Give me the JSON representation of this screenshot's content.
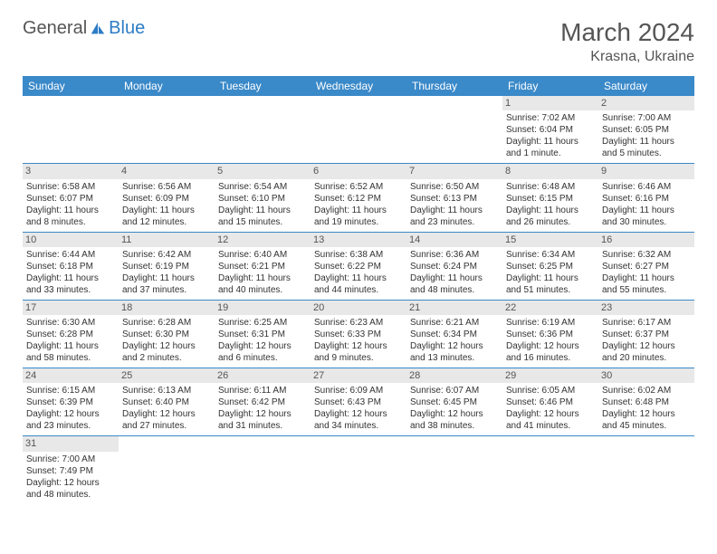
{
  "logo": {
    "part1": "General",
    "part2": "Blue"
  },
  "title": "March 2024",
  "location": "Krasna, Ukraine",
  "colors": {
    "header_bg": "#3a89c9",
    "header_text": "#ffffff",
    "daynum_bg": "#e8e8e8",
    "row_border": "#3a89c9",
    "body_text": "#333333",
    "logo_blue": "#2d7cc5",
    "logo_gray": "#555555"
  },
  "weekdays": [
    "Sunday",
    "Monday",
    "Tuesday",
    "Wednesday",
    "Thursday",
    "Friday",
    "Saturday"
  ],
  "weeks": [
    [
      null,
      null,
      null,
      null,
      null,
      {
        "d": "1",
        "sr": "Sunrise: 7:02 AM",
        "ss": "Sunset: 6:04 PM",
        "dl1": "Daylight: 11 hours",
        "dl2": "and 1 minute."
      },
      {
        "d": "2",
        "sr": "Sunrise: 7:00 AM",
        "ss": "Sunset: 6:05 PM",
        "dl1": "Daylight: 11 hours",
        "dl2": "and 5 minutes."
      }
    ],
    [
      {
        "d": "3",
        "sr": "Sunrise: 6:58 AM",
        "ss": "Sunset: 6:07 PM",
        "dl1": "Daylight: 11 hours",
        "dl2": "and 8 minutes."
      },
      {
        "d": "4",
        "sr": "Sunrise: 6:56 AM",
        "ss": "Sunset: 6:09 PM",
        "dl1": "Daylight: 11 hours",
        "dl2": "and 12 minutes."
      },
      {
        "d": "5",
        "sr": "Sunrise: 6:54 AM",
        "ss": "Sunset: 6:10 PM",
        "dl1": "Daylight: 11 hours",
        "dl2": "and 15 minutes."
      },
      {
        "d": "6",
        "sr": "Sunrise: 6:52 AM",
        "ss": "Sunset: 6:12 PM",
        "dl1": "Daylight: 11 hours",
        "dl2": "and 19 minutes."
      },
      {
        "d": "7",
        "sr": "Sunrise: 6:50 AM",
        "ss": "Sunset: 6:13 PM",
        "dl1": "Daylight: 11 hours",
        "dl2": "and 23 minutes."
      },
      {
        "d": "8",
        "sr": "Sunrise: 6:48 AM",
        "ss": "Sunset: 6:15 PM",
        "dl1": "Daylight: 11 hours",
        "dl2": "and 26 minutes."
      },
      {
        "d": "9",
        "sr": "Sunrise: 6:46 AM",
        "ss": "Sunset: 6:16 PM",
        "dl1": "Daylight: 11 hours",
        "dl2": "and 30 minutes."
      }
    ],
    [
      {
        "d": "10",
        "sr": "Sunrise: 6:44 AM",
        "ss": "Sunset: 6:18 PM",
        "dl1": "Daylight: 11 hours",
        "dl2": "and 33 minutes."
      },
      {
        "d": "11",
        "sr": "Sunrise: 6:42 AM",
        "ss": "Sunset: 6:19 PM",
        "dl1": "Daylight: 11 hours",
        "dl2": "and 37 minutes."
      },
      {
        "d": "12",
        "sr": "Sunrise: 6:40 AM",
        "ss": "Sunset: 6:21 PM",
        "dl1": "Daylight: 11 hours",
        "dl2": "and 40 minutes."
      },
      {
        "d": "13",
        "sr": "Sunrise: 6:38 AM",
        "ss": "Sunset: 6:22 PM",
        "dl1": "Daylight: 11 hours",
        "dl2": "and 44 minutes."
      },
      {
        "d": "14",
        "sr": "Sunrise: 6:36 AM",
        "ss": "Sunset: 6:24 PM",
        "dl1": "Daylight: 11 hours",
        "dl2": "and 48 minutes."
      },
      {
        "d": "15",
        "sr": "Sunrise: 6:34 AM",
        "ss": "Sunset: 6:25 PM",
        "dl1": "Daylight: 11 hours",
        "dl2": "and 51 minutes."
      },
      {
        "d": "16",
        "sr": "Sunrise: 6:32 AM",
        "ss": "Sunset: 6:27 PM",
        "dl1": "Daylight: 11 hours",
        "dl2": "and 55 minutes."
      }
    ],
    [
      {
        "d": "17",
        "sr": "Sunrise: 6:30 AM",
        "ss": "Sunset: 6:28 PM",
        "dl1": "Daylight: 11 hours",
        "dl2": "and 58 minutes."
      },
      {
        "d": "18",
        "sr": "Sunrise: 6:28 AM",
        "ss": "Sunset: 6:30 PM",
        "dl1": "Daylight: 12 hours",
        "dl2": "and 2 minutes."
      },
      {
        "d": "19",
        "sr": "Sunrise: 6:25 AM",
        "ss": "Sunset: 6:31 PM",
        "dl1": "Daylight: 12 hours",
        "dl2": "and 6 minutes."
      },
      {
        "d": "20",
        "sr": "Sunrise: 6:23 AM",
        "ss": "Sunset: 6:33 PM",
        "dl1": "Daylight: 12 hours",
        "dl2": "and 9 minutes."
      },
      {
        "d": "21",
        "sr": "Sunrise: 6:21 AM",
        "ss": "Sunset: 6:34 PM",
        "dl1": "Daylight: 12 hours",
        "dl2": "and 13 minutes."
      },
      {
        "d": "22",
        "sr": "Sunrise: 6:19 AM",
        "ss": "Sunset: 6:36 PM",
        "dl1": "Daylight: 12 hours",
        "dl2": "and 16 minutes."
      },
      {
        "d": "23",
        "sr": "Sunrise: 6:17 AM",
        "ss": "Sunset: 6:37 PM",
        "dl1": "Daylight: 12 hours",
        "dl2": "and 20 minutes."
      }
    ],
    [
      {
        "d": "24",
        "sr": "Sunrise: 6:15 AM",
        "ss": "Sunset: 6:39 PM",
        "dl1": "Daylight: 12 hours",
        "dl2": "and 23 minutes."
      },
      {
        "d": "25",
        "sr": "Sunrise: 6:13 AM",
        "ss": "Sunset: 6:40 PM",
        "dl1": "Daylight: 12 hours",
        "dl2": "and 27 minutes."
      },
      {
        "d": "26",
        "sr": "Sunrise: 6:11 AM",
        "ss": "Sunset: 6:42 PM",
        "dl1": "Daylight: 12 hours",
        "dl2": "and 31 minutes."
      },
      {
        "d": "27",
        "sr": "Sunrise: 6:09 AM",
        "ss": "Sunset: 6:43 PM",
        "dl1": "Daylight: 12 hours",
        "dl2": "and 34 minutes."
      },
      {
        "d": "28",
        "sr": "Sunrise: 6:07 AM",
        "ss": "Sunset: 6:45 PM",
        "dl1": "Daylight: 12 hours",
        "dl2": "and 38 minutes."
      },
      {
        "d": "29",
        "sr": "Sunrise: 6:05 AM",
        "ss": "Sunset: 6:46 PM",
        "dl1": "Daylight: 12 hours",
        "dl2": "and 41 minutes."
      },
      {
        "d": "30",
        "sr": "Sunrise: 6:02 AM",
        "ss": "Sunset: 6:48 PM",
        "dl1": "Daylight: 12 hours",
        "dl2": "and 45 minutes."
      }
    ],
    [
      {
        "d": "31",
        "sr": "Sunrise: 7:00 AM",
        "ss": "Sunset: 7:49 PM",
        "dl1": "Daylight: 12 hours",
        "dl2": "and 48 minutes."
      },
      null,
      null,
      null,
      null,
      null,
      null
    ]
  ]
}
